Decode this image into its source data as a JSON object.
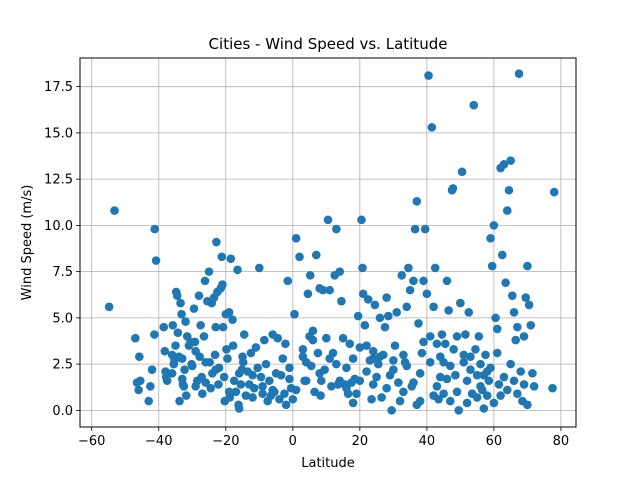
{
  "chart_data": {
    "type": "scatter",
    "title": "Cities - Wind Speed vs. Latitude",
    "xlabel": "Latitude",
    "ylabel": "Wind Speed (m/s)",
    "xlim": [
      -63.5,
      84.5
    ],
    "ylim": [
      -0.9,
      19.05
    ],
    "xticks": [
      -60,
      -40,
      -20,
      0,
      20,
      40,
      60,
      80
    ],
    "yticks": [
      0.0,
      2.5,
      5.0,
      7.5,
      10.0,
      12.5,
      15.0,
      17.5
    ],
    "xtick_labels": [
      "−60",
      "−40",
      "−20",
      "0",
      "20",
      "40",
      "60",
      "80"
    ],
    "ytick_labels": [
      "0.0",
      "2.5",
      "5.0",
      "7.5",
      "10.0",
      "12.5",
      "15.0",
      "17.5"
    ],
    "grid": true,
    "marker_color": "#1f77b4",
    "series": [
      {
        "points": [
          [
            -54.8,
            5.6
          ],
          [
            -53.2,
            10.8
          ],
          [
            -47,
            3.9
          ],
          [
            -46.5,
            1.5
          ],
          [
            -46,
            1.1
          ],
          [
            -45.8,
            2.9
          ],
          [
            -45.5,
            1.6
          ],
          [
            -43,
            0.5
          ],
          [
            -42.5,
            1.3
          ],
          [
            -42,
            2.2
          ],
          [
            -41.2,
            9.8
          ],
          [
            -40.8,
            8.1
          ],
          [
            -41.3,
            4.1
          ],
          [
            -38.5,
            4.5
          ],
          [
            -38.2,
            3.2
          ],
          [
            -38,
            2.1
          ],
          [
            -37.8,
            1.8
          ],
          [
            -37.5,
            1.6
          ],
          [
            -36,
            3.0
          ],
          [
            -35.8,
            4.6
          ],
          [
            -35.5,
            2.5
          ],
          [
            -35.3,
            2.7
          ],
          [
            -35,
            3.5
          ],
          [
            -34.8,
            6.4
          ],
          [
            -34.5,
            6.2
          ],
          [
            -34.3,
            4.2
          ],
          [
            -34,
            2.9
          ],
          [
            -33.8,
            0.5
          ],
          [
            -33.5,
            5.8
          ],
          [
            -33.2,
            5.2
          ],
          [
            -33,
            1.7
          ],
          [
            -32.8,
            1.4
          ],
          [
            -32.5,
            1.3
          ],
          [
            -32.3,
            2.2
          ],
          [
            -32,
            4.8
          ],
          [
            -31.8,
            0.8
          ],
          [
            -31.5,
            4.0
          ],
          [
            -31,
            3.5
          ],
          [
            -30.5,
            3.7
          ],
          [
            -30.2,
            2.5
          ],
          [
            -30,
            2.4
          ],
          [
            -29.5,
            5.5
          ],
          [
            -29.2,
            3.7
          ],
          [
            -29,
            3.2
          ],
          [
            -28.5,
            1.6
          ],
          [
            -28,
            6.2
          ],
          [
            -27.8,
            2.9
          ],
          [
            -27.5,
            4.6
          ],
          [
            -27.2,
            1.8
          ],
          [
            -27,
            0.9
          ],
          [
            -26.5,
            4.0
          ],
          [
            -26.2,
            7.0
          ],
          [
            -26,
            1.5
          ],
          [
            -25.5,
            5.9
          ],
          [
            -25,
            7.5
          ],
          [
            -24.8,
            2.6
          ],
          [
            -24.5,
            1.2
          ],
          [
            -24.2,
            5.8
          ],
          [
            -24,
            2.0
          ],
          [
            -23.5,
            6.1
          ],
          [
            -23.2,
            3.0
          ],
          [
            -23,
            4.5
          ],
          [
            -22.8,
            9.1
          ],
          [
            -22.5,
            6.4
          ],
          [
            -22.2,
            1.4
          ],
          [
            -22,
            2.3
          ],
          [
            -21.5,
            6.6
          ],
          [
            -21.2,
            8.3
          ],
          [
            -21,
            6.8
          ],
          [
            -20.8,
            4.5
          ],
          [
            -20.5,
            1.8
          ],
          [
            -20.3,
            0.5
          ],
          [
            -20,
            5.2
          ],
          [
            -19.8,
            3.3
          ],
          [
            -19.5,
            2.8
          ],
          [
            -19,
            5.3
          ],
          [
            -18.8,
            0.7
          ],
          [
            -18.5,
            8.2
          ],
          [
            -18,
            4.9
          ],
          [
            -17.8,
            3.5
          ],
          [
            -17.5,
            1.6
          ],
          [
            -17,
            1.0
          ],
          [
            -16.5,
            7.6
          ],
          [
            -16.2,
            0.3
          ],
          [
            -16,
            0.1
          ],
          [
            -15.5,
            1.4
          ],
          [
            -15.2,
            2.2
          ],
          [
            -15,
            2.9
          ],
          [
            -14.8,
            2.6
          ],
          [
            -14.5,
            4.1
          ],
          [
            -14,
            0.8
          ],
          [
            -13.5,
            2.1
          ],
          [
            -13,
            1.4
          ],
          [
            -12.5,
            3.1
          ],
          [
            -12,
            0.7
          ],
          [
            -11.5,
            1.2
          ],
          [
            -11,
            3.4
          ],
          [
            -10.5,
            2.3
          ],
          [
            -10,
            7.7
          ],
          [
            -9.5,
            1.8
          ],
          [
            -9,
            0.9
          ],
          [
            -8.5,
            3.8
          ],
          [
            -8,
            2.5
          ],
          [
            -7.5,
            0.5
          ],
          [
            -7,
            1.6
          ],
          [
            -6.5,
            0.8
          ],
          [
            -6,
            4.1
          ],
          [
            -5.5,
            1.0
          ],
          [
            -5,
            2.0
          ],
          [
            -4.5,
            3.9
          ],
          [
            -4,
            0.6
          ],
          [
            -3.5,
            1.9
          ],
          [
            -3,
            2.8
          ],
          [
            -2.5,
            0.9
          ],
          [
            -2.2,
            3.6
          ],
          [
            -2,
            0.3
          ],
          [
            -1.5,
            7.0
          ],
          [
            -1,
            1.7
          ],
          [
            -0.5,
            1.2
          ],
          [
            0,
            0.6
          ],
          [
            0.5,
            5.2
          ],
          [
            1,
            9.3
          ],
          [
            2,
            8.3
          ],
          [
            3,
            3.3
          ],
          [
            3.5,
            1.6
          ],
          [
            4,
            2.6
          ],
          [
            4.5,
            6.3
          ],
          [
            5,
            4.0
          ],
          [
            5.2,
            7.3
          ],
          [
            5.5,
            2.4
          ],
          [
            6,
            4.3
          ],
          [
            6.5,
            1.0
          ],
          [
            7,
            8.4
          ],
          [
            7.5,
            3.1
          ],
          [
            8,
            6.6
          ],
          [
            8.3,
            0.8
          ],
          [
            8.5,
            1.6
          ],
          [
            9,
            6.5
          ],
          [
            9.5,
            2.2
          ],
          [
            10,
            3.9
          ],
          [
            10.5,
            10.3
          ],
          [
            11,
            6.5
          ],
          [
            11.5,
            1.3
          ],
          [
            12,
            3.1
          ],
          [
            12.5,
            7.3
          ],
          [
            13,
            9.8
          ],
          [
            13.5,
            1.4
          ],
          [
            14,
            7.5
          ],
          [
            14.5,
            5.9
          ],
          [
            15,
            3.9
          ],
          [
            15.5,
            1.4
          ],
          [
            16,
            2.3
          ],
          [
            16.5,
            0.9
          ],
          [
            17,
            3.6
          ],
          [
            17.5,
            1.5
          ],
          [
            18,
            2.8
          ],
          [
            18.5,
            1.7
          ],
          [
            19,
            0.9
          ],
          [
            19.5,
            5.1
          ],
          [
            20,
            3.4
          ],
          [
            20.5,
            10.3
          ],
          [
            20.8,
            7.7
          ],
          [
            21,
            6.3
          ],
          [
            21.5,
            4.6
          ],
          [
            22,
            3.5
          ],
          [
            22.5,
            6.0
          ],
          [
            23,
            2.7
          ],
          [
            23.5,
            0.6
          ],
          [
            24,
            3.2
          ],
          [
            24.5,
            5.7
          ],
          [
            25,
            1.8
          ],
          [
            25.5,
            2.5
          ],
          [
            26,
            5.0
          ],
          [
            26.5,
            0.7
          ],
          [
            27,
            3.0
          ],
          [
            27.5,
            4.5
          ],
          [
            28,
            6.1
          ],
          [
            28.5,
            5.1
          ],
          [
            29,
            1.9
          ],
          [
            29.5,
            0.0
          ],
          [
            30,
            2.7
          ],
          [
            30.5,
            3.5
          ],
          [
            31,
            5.3
          ],
          [
            31.5,
            1.5
          ],
          [
            32,
            0.5
          ],
          [
            32.5,
            7.3
          ],
          [
            33,
            3.0
          ],
          [
            33.5,
            2.6
          ],
          [
            34,
            5.6
          ],
          [
            34.5,
            7.7
          ],
          [
            35,
            6.5
          ],
          [
            35.5,
            1.3
          ],
          [
            36,
            7.0
          ],
          [
            36.5,
            9.8
          ],
          [
            37,
            11.3
          ],
          [
            37.5,
            4.7
          ],
          [
            38,
            2.0
          ],
          [
            38.5,
            3.1
          ],
          [
            39,
            7.0
          ],
          [
            39.5,
            9.8
          ],
          [
            40,
            6.3
          ],
          [
            40.5,
            18.1
          ],
          [
            41,
            4.0
          ],
          [
            41.5,
            15.3
          ],
          [
            42,
            5.6
          ],
          [
            42.5,
            7.7
          ],
          [
            43,
            3.6
          ],
          [
            43.5,
            0.6
          ],
          [
            44,
            1.8
          ],
          [
            44.5,
            4.1
          ],
          [
            45,
            2.6
          ],
          [
            45.5,
            3.6
          ],
          [
            46,
            7.0
          ],
          [
            46.5,
            5.4
          ],
          [
            47,
            0.5
          ],
          [
            47.5,
            11.9
          ],
          [
            47.8,
            12.0
          ],
          [
            48,
            3.3
          ],
          [
            48.5,
            1.9
          ],
          [
            49,
            4.0
          ],
          [
            49.5,
            0.0
          ],
          [
            50,
            5.8
          ],
          [
            50.5,
            12.9
          ],
          [
            51,
            2.6
          ],
          [
            51.5,
            4.1
          ],
          [
            52,
            1.6
          ],
          [
            52.5,
            5.3
          ],
          [
            53,
            2.9
          ],
          [
            53.5,
            0.9
          ],
          [
            54,
            16.5
          ],
          [
            54.5,
            3.3
          ],
          [
            55,
            1.9
          ],
          [
            55.5,
            4.0
          ],
          [
            56,
            2.5
          ],
          [
            56.5,
            1.1
          ],
          [
            57,
            0.1
          ],
          [
            57.5,
            3.0
          ],
          [
            58,
            2.1
          ],
          [
            58.5,
            1.6
          ],
          [
            59,
            9.3
          ],
          [
            59.5,
            7.8
          ],
          [
            60,
            10.0
          ],
          [
            60.5,
            5.0
          ],
          [
            61,
            3.1
          ],
          [
            61.5,
            1.4
          ],
          [
            62,
            13.1
          ],
          [
            62.5,
            8.4
          ],
          [
            63,
            13.3
          ],
          [
            63.5,
            6.9
          ],
          [
            64,
            10.8
          ],
          [
            64.5,
            11.9
          ],
          [
            65,
            13.5
          ],
          [
            65.5,
            6.2
          ],
          [
            66,
            5.3
          ],
          [
            66.5,
            3.8
          ],
          [
            67,
            4.5
          ],
          [
            67.5,
            18.2
          ],
          [
            68,
            2.1
          ],
          [
            68.5,
            0.5
          ],
          [
            69,
            1.4
          ],
          [
            69.5,
            6.1
          ],
          [
            70,
            7.8
          ],
          [
            70.5,
            5.7
          ],
          [
            71,
            4.6
          ],
          [
            71.5,
            2.0
          ],
          [
            72,
            1.3
          ],
          [
            78,
            11.8
          ],
          [
            77.5,
            1.2
          ],
          [
            60,
            0.4
          ],
          [
            55,
            0.7
          ],
          [
            45,
            0.9
          ],
          [
            38,
            0.5
          ],
          [
            28,
            1.2
          ],
          [
            18,
            0.4
          ],
          [
            8,
            2.0
          ],
          [
            -1,
            2.3
          ],
          [
            -12,
            1.9
          ],
          [
            -23,
            2.2
          ],
          [
            -33,
            2.8
          ],
          [
            -29,
            1.3
          ],
          [
            3,
            2.9
          ],
          [
            13,
            2.5
          ],
          [
            24,
            1.4
          ],
          [
            33,
            1.0
          ],
          [
            43,
            1.3
          ],
          [
            53,
            2.2
          ],
          [
            63,
            1.8
          ],
          [
            67,
            0.9
          ],
          [
            70,
            0.3
          ],
          [
            22,
            2.1
          ],
          [
            26,
            2.9
          ],
          [
            30,
            2.2
          ],
          [
            36,
            1.5
          ],
          [
            41,
            2.6
          ],
          [
            46,
            1.7
          ],
          [
            49,
            1.0
          ],
          [
            51,
            3.0
          ],
          [
            56,
            1.3
          ],
          [
            59,
            2.3
          ],
          [
            62,
            0.8
          ],
          [
            65,
            2.5
          ],
          [
            69,
            4.0
          ],
          [
            -19,
            1.0
          ],
          [
            -9,
            1.3
          ],
          [
            1,
            1.1
          ],
          [
            6,
            3.8
          ],
          [
            11,
            2.8
          ],
          [
            16,
            1.2
          ],
          [
            20,
            1.6
          ],
          [
            34,
            2.4
          ],
          [
            39,
            3.7
          ],
          [
            44,
            2.9
          ],
          [
            47,
            2.4
          ],
          [
            57,
            1.9
          ],
          [
            61,
            4.4
          ],
          [
            66,
            1.6
          ],
          [
            -36,
            2.0
          ],
          [
            -26,
            2.6
          ],
          [
            -16,
            2.0
          ],
          [
            -6,
            1.1
          ],
          [
            4,
            1.6
          ],
          [
            14,
            1.6
          ],
          [
            24,
            2.8
          ],
          [
            37,
            0.3
          ],
          [
            42,
            0.8
          ],
          [
            52,
            0.4
          ],
          [
            58,
            0.8
          ],
          [
            64,
            1.1
          ]
        ]
      }
    ]
  }
}
